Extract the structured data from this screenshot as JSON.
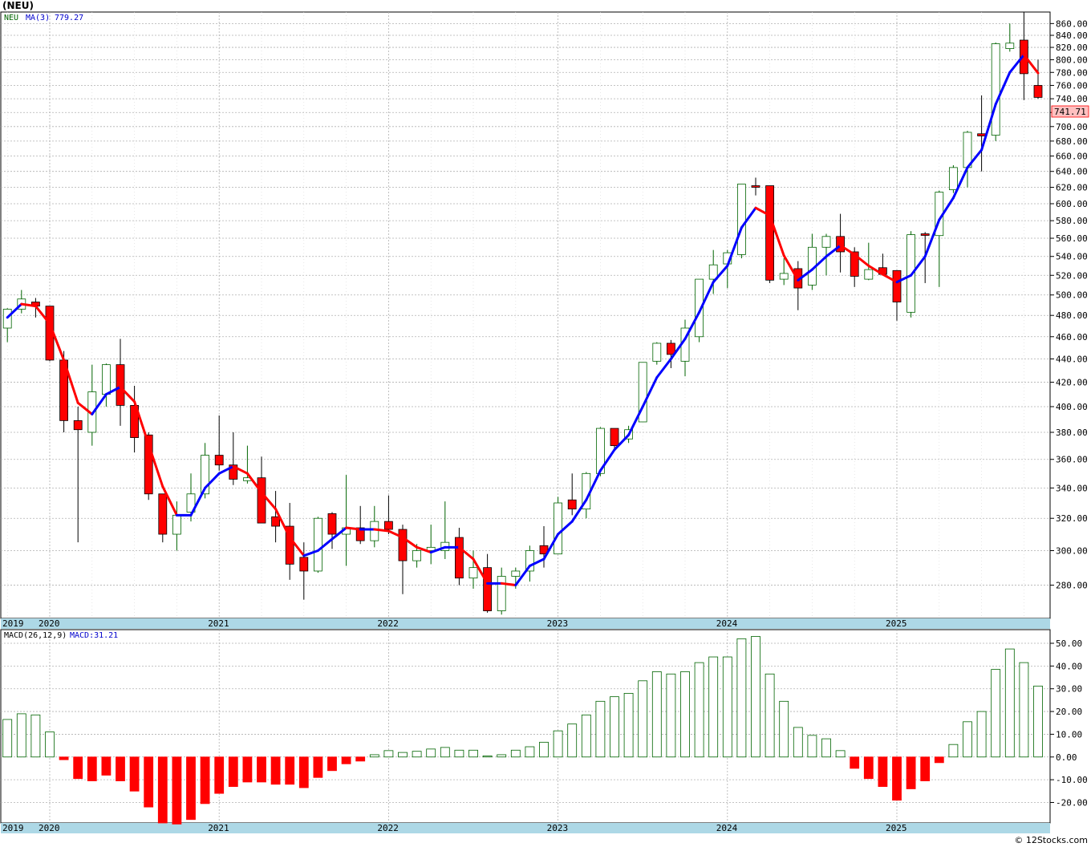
{
  "page": {
    "title": "(NEU)",
    "credit": "© 12Stocks.com"
  },
  "colors": {
    "up_candle": "#006400",
    "down_candle": "#ff0000",
    "ma_up": "#0000ff",
    "ma_down": "#ff0000",
    "grid": "#b0b0b0",
    "axis_band": "#add8e6",
    "last_price_box": "#ffc0c0"
  },
  "chart_data": [
    {
      "type": "candlestick",
      "panel": "price",
      "legend": {
        "symbol": "NEU",
        "ma_label": "MA(3)",
        "ma_value": "779.27"
      },
      "last_price_label": "741.71",
      "scale": "log",
      "ylim": [
        262,
        880
      ],
      "y_ticks": [
        280,
        300,
        320,
        340,
        360,
        380,
        400,
        420,
        440,
        460,
        480,
        500,
        520,
        540,
        560,
        580,
        600,
        620,
        640,
        660,
        680,
        700,
        720,
        740,
        760,
        780,
        800,
        820,
        840,
        860
      ],
      "y_tick_labels": [
        "280.00",
        "300.00",
        "320.00",
        "340.00",
        "360.00",
        "380.00",
        "400.00",
        "420.00",
        "440.00",
        "460.00",
        "480.00",
        "500.00",
        "520.00",
        "540.00",
        "560.00",
        "580.00",
        "600.00",
        "620.00",
        "640.00",
        "660.00",
        "680.00",
        "700.00",
        "720.00",
        "740.00",
        "760.00",
        "780.00",
        "800.00",
        "820.00",
        "840.00",
        "860.00"
      ],
      "x_axis_labels": [
        "2019",
        "2020",
        "2021",
        "2022",
        "2023",
        "2024",
        "2025"
      ],
      "x_axis_label_month_index": [
        -1,
        0,
        12,
        24,
        36,
        48,
        60
      ],
      "months": 75,
      "ohlc": [
        [
          468,
          487,
          455,
          486
        ],
        [
          486,
          505,
          482,
          496
        ],
        [
          493,
          497,
          478,
          489
        ],
        [
          489,
          489,
          438,
          439
        ],
        [
          439,
          447,
          380,
          389
        ],
        [
          389,
          400,
          305,
          382
        ],
        [
          380,
          435,
          370,
          412
        ],
        [
          410,
          436,
          400,
          435
        ],
        [
          435,
          458,
          385,
          401
        ],
        [
          401,
          417,
          365,
          376
        ],
        [
          378,
          380,
          332,
          336
        ],
        [
          336,
          336,
          305,
          310
        ],
        [
          310,
          331,
          300,
          322
        ],
        [
          324,
          350,
          318,
          336
        ],
        [
          336,
          372,
          333,
          363
        ],
        [
          363,
          393,
          352,
          356
        ],
        [
          356,
          380,
          342,
          346
        ],
        [
          345,
          370,
          343,
          347
        ],
        [
          347,
          362,
          318,
          317
        ],
        [
          321,
          338,
          305,
          315
        ],
        [
          315,
          330,
          283,
          292
        ],
        [
          296,
          305,
          272,
          288
        ],
        [
          288,
          321,
          287,
          320
        ],
        [
          323,
          324,
          301,
          310
        ],
        [
          310,
          349,
          291,
          314
        ],
        [
          314,
          328,
          304,
          306
        ],
        [
          306,
          328,
          302,
          318
        ],
        [
          318,
          335,
          310,
          313
        ],
        [
          313,
          316,
          275,
          294
        ],
        [
          294,
          304,
          290,
          300
        ],
        [
          300,
          316,
          292,
          302
        ],
        [
          300,
          331,
          295,
          305
        ],
        [
          308,
          314,
          280,
          284
        ],
        [
          284,
          300,
          278,
          290
        ],
        [
          290,
          298,
          265,
          266
        ],
        [
          266,
          290,
          264,
          285
        ],
        [
          285,
          290,
          278,
          288
        ],
        [
          288,
          303,
          282,
          300
        ],
        [
          303,
          315,
          290,
          298
        ],
        [
          298,
          334,
          298,
          330
        ],
        [
          332,
          350,
          322,
          326
        ],
        [
          326,
          351,
          320,
          350
        ],
        [
          350,
          384,
          348,
          383
        ],
        [
          383,
          382,
          368,
          370
        ],
        [
          375,
          385,
          372,
          382
        ],
        [
          388,
          437,
          388,
          437
        ],
        [
          438,
          455,
          435,
          454
        ],
        [
          454,
          457,
          432,
          444
        ],
        [
          438,
          476,
          425,
          468
        ],
        [
          460,
          516,
          455,
          516
        ],
        [
          516,
          547,
          501,
          531
        ],
        [
          532,
          547,
          507,
          544
        ],
        [
          542,
          624,
          538,
          624
        ],
        [
          622,
          632,
          610,
          620
        ],
        [
          622,
          622,
          512,
          515
        ],
        [
          516,
          538,
          510,
          522
        ],
        [
          527,
          535,
          485,
          507
        ],
        [
          510,
          565,
          505,
          550
        ],
        [
          550,
          565,
          520,
          562
        ],
        [
          562,
          588,
          523,
          545
        ],
        [
          545,
          550,
          508,
          519
        ],
        [
          516,
          555,
          515,
          526
        ],
        [
          528,
          543,
          525,
          521
        ],
        [
          525,
          525,
          475,
          493
        ],
        [
          483,
          568,
          478,
          564
        ],
        [
          565,
          567,
          512,
          564
        ],
        [
          563,
          616,
          508,
          614
        ],
        [
          617,
          648,
          613,
          645
        ],
        [
          645,
          694,
          620,
          692
        ],
        [
          690,
          745,
          640,
          687
        ],
        [
          688,
          828,
          680,
          826
        ],
        [
          818,
          860,
          813,
          827
        ],
        [
          832,
          880,
          738,
          778
        ],
        [
          760,
          800,
          740,
          742
        ]
      ],
      "ma3": [
        478,
        491,
        489,
        472,
        439,
        403,
        394,
        410,
        416,
        404,
        371,
        341,
        322,
        322,
        340,
        350,
        355,
        350,
        337,
        326,
        308,
        297,
        300,
        307,
        314,
        313,
        313,
        312,
        308,
        302,
        299,
        302,
        302,
        295,
        281,
        281,
        280,
        291,
        295,
        310,
        318,
        332,
        352,
        367,
        378,
        400,
        424,
        440,
        458,
        483,
        513,
        530,
        572,
        595,
        586,
        541,
        515,
        526,
        540,
        552,
        542,
        530,
        521,
        513,
        520,
        540,
        581,
        607,
        645,
        668,
        732,
        780,
        808,
        779
      ]
    },
    {
      "type": "bar",
      "panel": "macd",
      "title": "MACD(26,12,9)",
      "value_label": "MACD:31.21",
      "ylim": [
        -29,
        56
      ],
      "y_ticks": [
        -20,
        -10,
        0,
        10,
        20,
        30,
        40,
        50
      ],
      "y_tick_labels": [
        "-20.00",
        "-10.00",
        "0.00",
        "10.00",
        "20.00",
        "30.00",
        "40.00",
        "50.00"
      ],
      "x_axis_labels": [
        "2019",
        "2020",
        "2021",
        "2022",
        "2023",
        "2024",
        "2025"
      ],
      "values": [
        16.5,
        19,
        18.5,
        11,
        -1.2,
        -9.5,
        -10.5,
        -8,
        -10.5,
        -15,
        -22,
        -29,
        -29.5,
        -27.5,
        -20.5,
        -16,
        -13,
        -11,
        -11,
        -12,
        -12,
        -13.5,
        -9,
        -6,
        -3,
        -1.8,
        1,
        2.8,
        2,
        2.5,
        3.5,
        4.2,
        3,
        3,
        0.5,
        1,
        3,
        4.5,
        6.5,
        11.5,
        14.5,
        18.5,
        24.5,
        26.5,
        28,
        33.5,
        37.5,
        36.5,
        37.5,
        41.5,
        44,
        44,
        52,
        53,
        36.5,
        24.5,
        13,
        9.5,
        8,
        2.8,
        -5,
        -9.5,
        -13,
        -19,
        -14,
        -10.5,
        -2.5,
        5.5,
        15.5,
        20,
        38.5,
        47.5,
        41.5,
        31.2
      ]
    }
  ]
}
